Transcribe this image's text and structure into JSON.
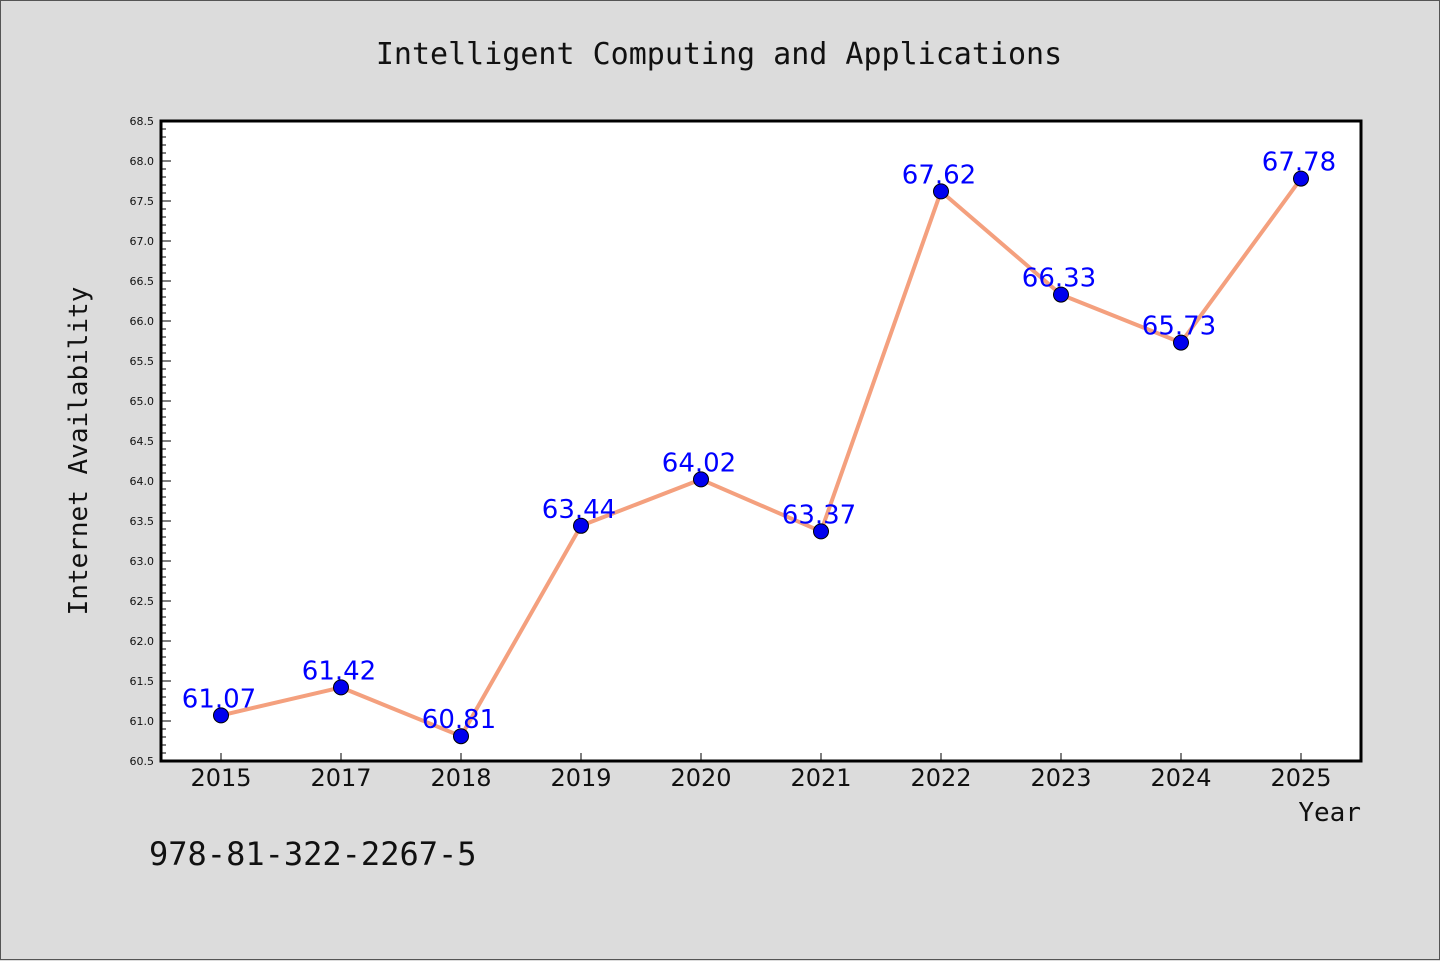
{
  "colors": {
    "background": "#dcdcdc",
    "plot_background": "#ffffff",
    "line": "#f4a07e",
    "marker": "#0000ee",
    "data_label": "#0000ff",
    "text": "#111111"
  },
  "isbn": "978-81-322-2267-5",
  "chart_data": {
    "type": "line",
    "title": "Intelligent Computing and Applications",
    "xlabel": "Year",
    "ylabel": "Internet Availability",
    "categories": [
      "2015",
      "2017",
      "2018",
      "2019",
      "2020",
      "2021",
      "2022",
      "2023",
      "2024",
      "2025"
    ],
    "series": [
      {
        "values": [
          61.07,
          61.42,
          60.81,
          63.44,
          64.02,
          63.37,
          67.62,
          66.33,
          65.73,
          67.78
        ],
        "labels": [
          "61.07",
          "61.42",
          "60.81",
          "63.44",
          "64.02",
          "63.37",
          "67.62",
          "66.33",
          "65.73",
          "67.78"
        ]
      }
    ],
    "ylim": [
      60.5,
      68.5
    ],
    "ytick_step": 0.5,
    "yminor_step": 0.1,
    "grid": false,
    "legend": "none"
  }
}
